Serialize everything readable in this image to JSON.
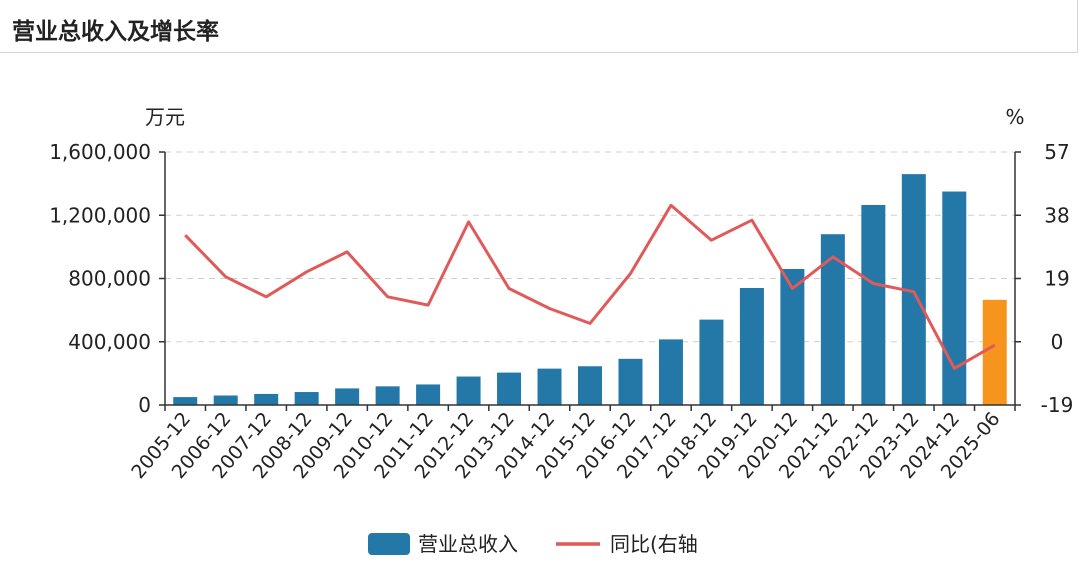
{
  "page_title": "营业总收入及增长率",
  "chart_data": {
    "type": "bar",
    "categories": [
      "2005-12",
      "2006-12",
      "2007-12",
      "2008-12",
      "2009-12",
      "2010-12",
      "2011-12",
      "2012-12",
      "2013-12",
      "2014-12",
      "2015-12",
      "2016-12",
      "2017-12",
      "2018-12",
      "2019-12",
      "2020-12",
      "2021-12",
      "2022-12",
      "2023-12",
      "2024-12",
      "2025-06"
    ],
    "series": [
      {
        "name": "营业总收入",
        "type": "bar",
        "axis": "left",
        "color": "#2378a8",
        "highlight_color": "#f7941d",
        "highlight_index": 20,
        "values": [
          50000,
          60000,
          70000,
          82000,
          105000,
          118000,
          130000,
          180000,
          205000,
          230000,
          245000,
          292000,
          415000,
          540000,
          740000,
          860000,
          1080000,
          1265000,
          1460000,
          1350000,
          665000
        ]
      },
      {
        "name": "同比(右轴",
        "type": "line",
        "axis": "right",
        "color": "#e05a5a",
        "values": [
          32,
          19.5,
          13.5,
          21,
          27,
          13.5,
          11,
          36,
          16,
          10,
          5.5,
          20.5,
          41,
          30.5,
          36.5,
          16,
          25.5,
          17.5,
          15,
          -8,
          -1
        ]
      }
    ],
    "left_axis": {
      "unit": "万元",
      "ylim": [
        0,
        1600000
      ],
      "ticks": [
        0,
        400000,
        800000,
        1200000,
        1600000
      ],
      "tick_labels": [
        "0",
        "400,000",
        "800,000",
        "1,200,000",
        "1,600,000"
      ]
    },
    "right_axis": {
      "unit": "%",
      "ylim": [
        -19,
        57
      ],
      "ticks": [
        -19,
        0,
        19,
        38,
        57
      ],
      "tick_labels": [
        "-19",
        "0",
        "19",
        "38",
        "57"
      ]
    },
    "grid": true,
    "legend": "bottom"
  }
}
